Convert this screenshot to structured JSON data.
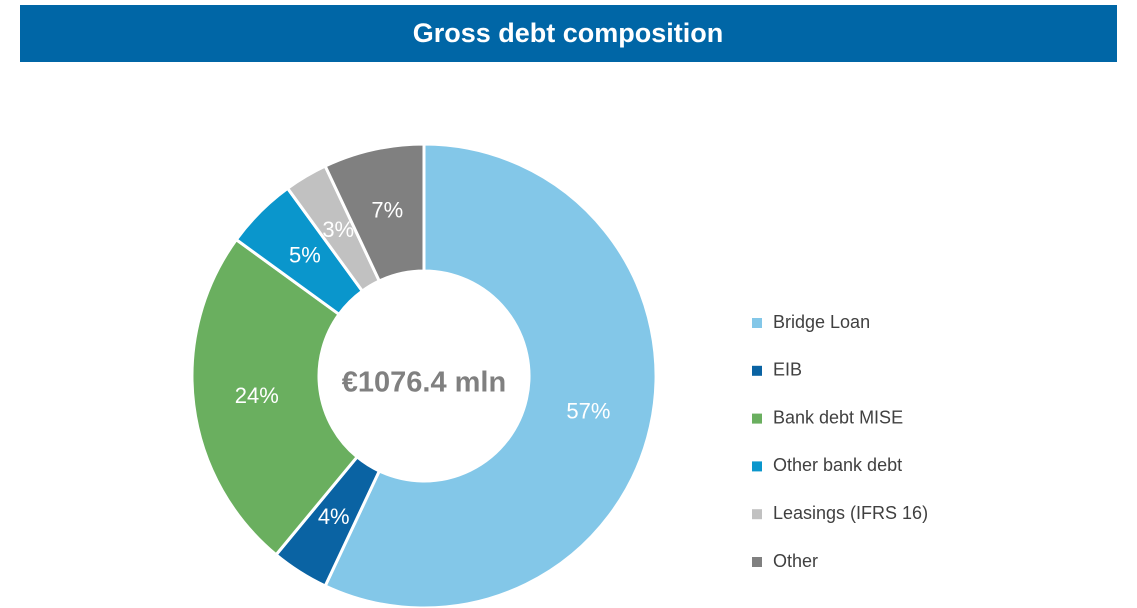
{
  "chart_data": {
    "type": "donut",
    "title": "Gross debt composition",
    "center_label": "€1076.4 mln",
    "categories": [
      "Bridge Loan",
      "EIB",
      "Bank debt MISE",
      "Other bank debt",
      "Leasings (IFRS 16)",
      "Other"
    ],
    "values": [
      57,
      4,
      24,
      5,
      3,
      7
    ],
    "value_labels": [
      "57%",
      "4%",
      "24%",
      "5%",
      "3%",
      "7%"
    ],
    "colors": [
      "#83c7e8",
      "#0a63a3",
      "#6aaf5f",
      "#0a96cc",
      "#c1c1c1",
      "#808080"
    ],
    "legend": "right"
  }
}
